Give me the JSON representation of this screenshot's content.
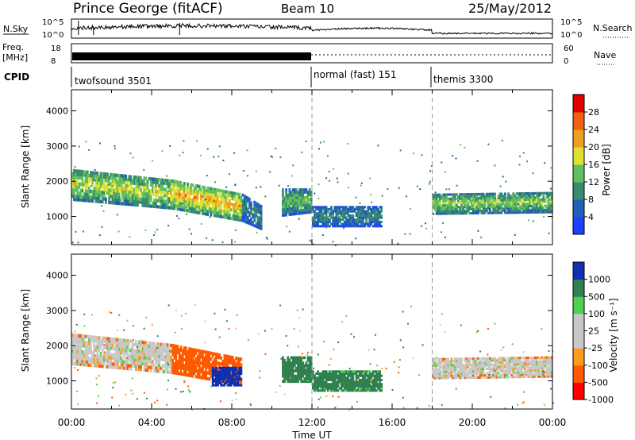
{
  "header": {
    "title": "Prince George (fitACF)",
    "beam": "Beam 10",
    "date": "25/May/2012"
  },
  "nsky_panel": {
    "left_label": "N.Sky",
    "right_label": "N.Search",
    "left_ticks": [
      "10^5",
      "10^0"
    ],
    "right_ticks": [
      "10^5",
      "10^0"
    ]
  },
  "freq_panel": {
    "left_label_line1": "Freq.",
    "left_label_line2": "[MHz]",
    "left_ticks": [
      "18",
      "8"
    ],
    "right_label": "Nave",
    "right_ticks": [
      "60",
      "0"
    ]
  },
  "cpid_panel": {
    "label": "CPID",
    "segments": [
      {
        "label": "twofsound 3501",
        "start_hour": 0
      },
      {
        "label": "normal (fast) 151",
        "start_hour": 12
      },
      {
        "label": "themis 3300",
        "start_hour": 18
      }
    ]
  },
  "colors": {
    "power_scale": [
      "#2040ff",
      "#2060b8",
      "#3a8a70",
      "#60c060",
      "#e0e030",
      "#f0a020",
      "#f06010",
      "#e00000"
    ],
    "velocity_scale": [
      "#ff0000",
      "#ff5a00",
      "#ff9a20",
      "#c8c8c8",
      "#c8c8c8",
      "#50d050",
      "#308050",
      "#1030b0"
    ]
  },
  "chart_data": [
    {
      "type": "heatmap",
      "name": "Power panel",
      "ylabel": "Slant Range [km]",
      "yticks": [
        1000,
        2000,
        3000,
        4000
      ],
      "ylim": [
        200,
        4600
      ],
      "xlim": [
        0,
        24
      ],
      "colorbar": {
        "label": "Power [dB]",
        "ticks": [
          "4",
          "8",
          "12",
          "16",
          "20",
          "24",
          "28"
        ],
        "range": [
          0,
          32
        ]
      },
      "bands": [
        {
          "x": [
            0,
            5
          ],
          "range_start": [
            1450,
            1200
          ],
          "range_end": [
            2350,
            2050
          ],
          "power": 18
        },
        {
          "x": [
            5,
            8.5
          ],
          "range_start": [
            1200,
            850
          ],
          "range_end": [
            2050,
            1650
          ],
          "power": 22
        },
        {
          "x": [
            8.5,
            9.5
          ],
          "range_start": [
            850,
            600
          ],
          "range_end": [
            1650,
            1300
          ],
          "power": 10
        },
        {
          "x": [
            10.5,
            12
          ],
          "range_start": [
            1000,
            1100
          ],
          "range_end": [
            1800,
            1800
          ],
          "power": 14
        },
        {
          "x": [
            12,
            15.5
          ],
          "range_start": [
            700,
            700
          ],
          "range_end": [
            1300,
            1300
          ],
          "power": 10
        },
        {
          "x": [
            18,
            24
          ],
          "range_start": [
            1050,
            1100
          ],
          "range_end": [
            1650,
            1700
          ],
          "power": 16
        }
      ]
    },
    {
      "type": "heatmap",
      "name": "Velocity panel",
      "ylabel": "Slant Range [km]",
      "xlabel": "Time UT",
      "xticks": [
        "00:00",
        "04:00",
        "08:00",
        "12:00",
        "16:00",
        "20:00",
        "00:00"
      ],
      "yticks": [
        1000,
        2000,
        3000,
        4000
      ],
      "ylim": [
        200,
        4600
      ],
      "xlim": [
        0,
        24
      ],
      "colorbar": {
        "label": "Velocity [m s⁻¹]",
        "ticks": [
          "1000",
          "500",
          "100",
          "25",
          "-25",
          "-100",
          "-500",
          "-1000"
        ],
        "range": [
          -1500,
          1500
        ]
      },
      "bands": [
        {
          "x": [
            0,
            5
          ],
          "range_start": [
            1450,
            1200
          ],
          "range_end": [
            2350,
            2050
          ],
          "velocity": 0
        },
        {
          "x": [
            5,
            8.5
          ],
          "range_start": [
            1200,
            850
          ],
          "range_end": [
            2050,
            1650
          ],
          "velocity": -150
        },
        {
          "x": [
            7,
            8.5
          ],
          "range_start": [
            850,
            850
          ],
          "range_end": [
            1400,
            1400
          ],
          "velocity": 800
        },
        {
          "x": [
            10.5,
            12
          ],
          "range_start": [
            950,
            950
          ],
          "range_end": [
            1700,
            1700
          ],
          "velocity": 300
        },
        {
          "x": [
            12,
            15.5
          ],
          "range_start": [
            700,
            700
          ],
          "range_end": [
            1300,
            1300
          ],
          "velocity": 200
        },
        {
          "x": [
            18,
            24
          ],
          "range_start": [
            1050,
            1100
          ],
          "range_end": [
            1650,
            1700
          ],
          "velocity": 0
        }
      ]
    }
  ]
}
